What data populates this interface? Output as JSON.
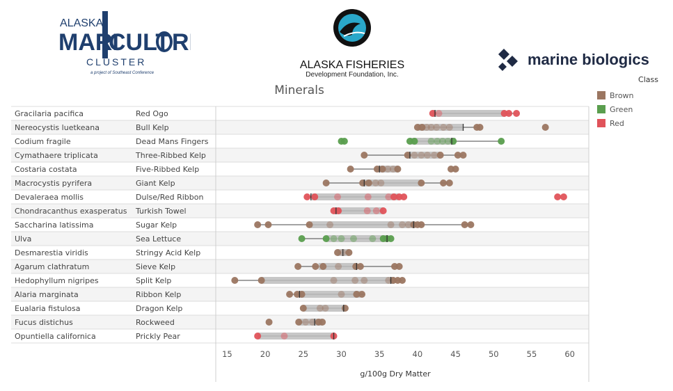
{
  "logos": {
    "maricultre": {
      "line1": "ALASKA",
      "line2a": "MARI",
      "line2b": "CULT",
      "line2c": "RE",
      "line3": "CLUSTER",
      "line4": "a project of Southeast Conference"
    },
    "afdf": {
      "line1": "ALASKA FISHERIES",
      "line2": "Development Foundation, Inc."
    },
    "marine_biologics": {
      "text": "marine biologics"
    }
  },
  "colors": {
    "Brown": "#9b7661",
    "Green": "#5a9e4e",
    "Red": "#e0535a"
  },
  "legend": {
    "title": "Class",
    "items": [
      {
        "label": "Brown",
        "color": "#9b7661"
      },
      {
        "label": "Green",
        "color": "#5a9e4e"
      },
      {
        "label": "Red",
        "color": "#e0535a"
      }
    ]
  },
  "chart_data": {
    "type": "scatter",
    "title": "Minerals",
    "xlabel": "g/100g Dry Matter",
    "xlim": [
      13.5,
      62.5
    ],
    "xticks": [
      15,
      20,
      25,
      30,
      35,
      40,
      45,
      50,
      55,
      60
    ],
    "grid": false,
    "legend_position": "top-right",
    "rows": [
      {
        "species": "Gracilaria pacifica",
        "common": "Red Ogo",
        "class": "Red",
        "band": [
          42,
          51.5
        ],
        "whiskers": [
          42,
          53
        ],
        "median": 42.3,
        "points": [
          42.0,
          42.8,
          51.4,
          52.0,
          53.0
        ]
      },
      {
        "species": "Nereocystis luetkeana",
        "common": "Bull Kelp",
        "class": "Brown",
        "band": [
          40,
          46
        ],
        "whiskers": [
          40,
          48
        ],
        "median": 46.0,
        "points": [
          40.0,
          40.6,
          41.2,
          41.8,
          42.5,
          43.4,
          44.2,
          47.8,
          48.2,
          56.8
        ]
      },
      {
        "species": "Codium fragile",
        "common": "Dead Mans Fingers",
        "class": "Green",
        "band": [
          39,
          45
        ],
        "whiskers": [
          39,
          51
        ],
        "median": 44.5,
        "points": [
          30.0,
          30.4,
          39.0,
          39.6,
          41.8,
          42.6,
          43.3,
          44.0,
          44.7,
          51.0
        ]
      },
      {
        "species": "Cymathaere triplicata",
        "common": "Three-Ribbed Kelp",
        "class": "Brown",
        "band": [
          38.7,
          43
        ],
        "whiskers": [
          33,
          46
        ],
        "median": 39.0,
        "points": [
          33.0,
          38.7,
          39.6,
          40.5,
          41.3,
          42.2,
          43.0,
          45.3,
          46.0
        ]
      },
      {
        "species": "Costaria costata",
        "common": "Five-Ribbed Kelp",
        "class": "Brown",
        "band": [
          35,
          37.5
        ],
        "whiskers": [
          31,
          37.5
        ],
        "median": 35.0,
        "points": [
          31.2,
          34.7,
          35.4,
          36.1,
          36.8,
          37.4,
          44.4,
          45.0
        ]
      },
      {
        "species": "Macrocystis pyrifera",
        "common": "Giant Kelp",
        "class": "Brown",
        "band": [
          33,
          40.5
        ],
        "whiskers": [
          28,
          44
        ],
        "median": 33.0,
        "points": [
          28.0,
          32.8,
          33.6,
          34.5,
          35.2,
          40.5,
          43.4,
          44.2
        ]
      },
      {
        "species": "Devaleraea mollis",
        "common": "Dulse/Red Ribbon",
        "class": "Red",
        "band": [
          26,
          37.5
        ],
        "whiskers": [
          25.5,
          38
        ],
        "median": 26.0,
        "points": [
          25.5,
          26.5,
          29.5,
          33.5,
          36.2,
          36.9,
          37.6,
          38.2,
          58.4,
          59.2
        ]
      },
      {
        "species": "Chondracanthus exasperatus",
        "common": "Turkish Towel",
        "class": "Red",
        "band": [
          29,
          35.5
        ],
        "whiskers": [
          29,
          35.5
        ],
        "median": 29.3,
        "points": [
          29.0,
          29.6,
          33.4,
          34.6,
          35.5
        ]
      },
      {
        "species": "Saccharina latissima",
        "common": "Sugar Kelp",
        "class": "Brown",
        "band": [
          26,
          39.5
        ],
        "whiskers": [
          19,
          47
        ],
        "median": 39.5,
        "points": [
          19.0,
          20.4,
          25.8,
          28.5,
          36.5,
          38.0,
          38.8,
          39.5,
          40.0,
          40.5,
          46.2,
          47.0
        ]
      },
      {
        "species": "Ulva",
        "common": "Sea Lettuce",
        "class": "Green",
        "band": [
          28,
          36
        ],
        "whiskers": [
          25,
          36.5
        ],
        "median": 36.0,
        "points": [
          24.8,
          28.0,
          29.0,
          30.0,
          31.6,
          34.1,
          35.5,
          36.0,
          36.5
        ]
      },
      {
        "species": "Desmarestia viridis",
        "common": "Stringy Acid Kelp",
        "class": "Brown",
        "band": [
          29.5,
          31
        ],
        "whiskers": [
          29.5,
          31
        ],
        "median": 30.2,
        "points": [
          29.5,
          30.2,
          31.0
        ]
      },
      {
        "species": "Agarum clathratum",
        "common": "Sieve Kelp",
        "class": "Brown",
        "band": [
          27,
          32
        ],
        "whiskers": [
          24.3,
          37.5
        ],
        "median": 32.0,
        "points": [
          24.3,
          26.6,
          27.6,
          29.6,
          31.9,
          32.5,
          37.0,
          37.6
        ]
      },
      {
        "species": "Hedophyllum nigripes",
        "common": "Split Kelp",
        "class": "Brown",
        "band": [
          19.5,
          37
        ],
        "whiskers": [
          16,
          38
        ],
        "median": 36.5,
        "points": [
          16.0,
          19.5,
          29.0,
          31.8,
          33.0,
          36.2,
          36.8,
          37.4,
          38.0
        ]
      },
      {
        "species": "Alaria marginata",
        "common": "Ribbon Kelp",
        "class": "Brown",
        "band": [
          24.5,
          32.5
        ],
        "whiskers": [
          23,
          33
        ],
        "median": 24.5,
        "points": [
          23.2,
          24.2,
          24.8,
          30.0,
          32.0,
          32.7
        ]
      },
      {
        "species": "Eualaria fistulosa",
        "common": "Dragon Kelp",
        "class": "Brown",
        "band": [
          25,
          30.5
        ],
        "whiskers": [
          25,
          30.5
        ],
        "median": 30.3,
        "points": [
          25.0,
          27.2,
          27.9,
          30.5
        ]
      },
      {
        "species": "Fucus distichus",
        "common": "Rockweed",
        "class": "Brown",
        "band": [
          24.5,
          27.5
        ],
        "whiskers": [
          24.5,
          27.5
        ],
        "median": 26.5,
        "points": [
          20.5,
          24.4,
          25.3,
          26.2,
          27.0,
          27.5
        ]
      },
      {
        "species": "Opuntiella californica",
        "common": "Prickly Pear",
        "class": "Red",
        "band": [
          19,
          29
        ],
        "whiskers": [
          19,
          29
        ],
        "median": 29.0,
        "points": [
          19.0,
          22.5,
          29.0
        ]
      }
    ]
  }
}
